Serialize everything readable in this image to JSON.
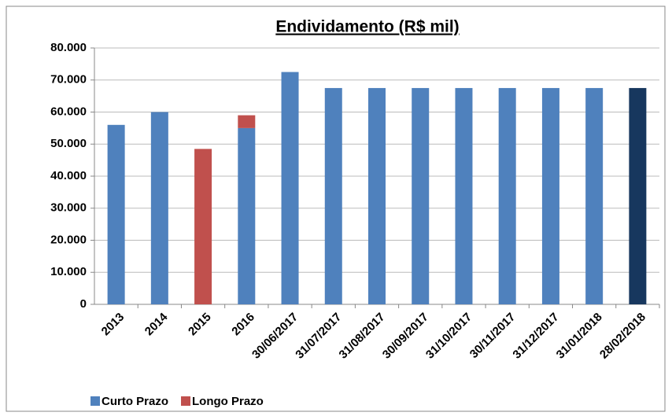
{
  "chart_data": {
    "type": "stacked_bar",
    "title": "Endividamento (R$ mil)",
    "categories": [
      "2013",
      "2014",
      "2015",
      "2016",
      "30/06/2017",
      "31/07/2017",
      "31/08/2017",
      "30/09/2017",
      "31/10/2017",
      "30/11/2017",
      "31/12/2017",
      "31/01/2018",
      "28/02/2018"
    ],
    "series": [
      {
        "name": "Curto Prazo",
        "color": "#4f81bd",
        "colors": [
          "#4f81bd",
          "#4f81bd",
          "#4f81bd",
          "#4f81bd",
          "#4f81bd",
          "#4f81bd",
          "#4f81bd",
          "#4f81bd",
          "#4f81bd",
          "#4f81bd",
          "#4f81bd",
          "#4f81bd",
          "#17375e"
        ],
        "values": [
          56000,
          60000,
          0,
          55000,
          72500,
          67500,
          67500,
          67500,
          67500,
          67500,
          67500,
          67500,
          67500
        ]
      },
      {
        "name": "Longo Prazo",
        "color": "#c0504d",
        "values": [
          0,
          0,
          48500,
          4000,
          0,
          0,
          0,
          0,
          0,
          0,
          0,
          0,
          0
        ]
      }
    ],
    "ylim": [
      0,
      80000
    ],
    "yticks": [
      0,
      {
        "value": 10000,
        "label": "10.000"
      },
      {
        "value": 20000,
        "label": "20.000"
      },
      {
        "value": 30000,
        "label": "30.000"
      },
      {
        "value": 40000,
        "label": "40.000"
      },
      {
        "value": 50000,
        "label": "50.000"
      },
      {
        "value": 60000,
        "label": "60.000"
      },
      {
        "value": 70000,
        "label": "70.000"
      },
      {
        "value": 80000,
        "label": "80.000"
      }
    ],
    "grid": true,
    "legend": "bottom-left"
  }
}
